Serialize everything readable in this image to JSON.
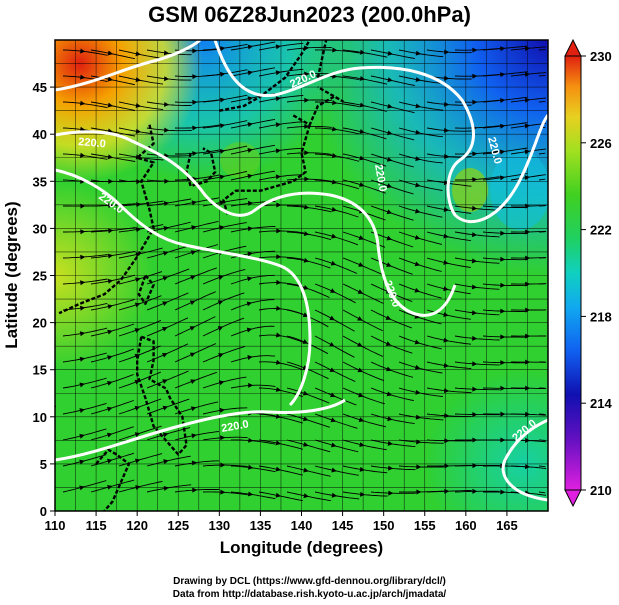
{
  "title": "GSM 06Z28Jun2023 (200.0hPa)",
  "x_axis": {
    "label": "Longitude (degrees)",
    "range": [
      110,
      170
    ],
    "ticks": [
      "110",
      "115",
      "120",
      "125",
      "130",
      "135",
      "140",
      "145",
      "150",
      "155",
      "160",
      "165"
    ]
  },
  "y_axis": {
    "label": "Latitude  (degrees)",
    "range": [
      0,
      50
    ],
    "ticks": [
      "0",
      "5",
      "10",
      "15",
      "20",
      "25",
      "30",
      "35",
      "40",
      "45"
    ]
  },
  "colorbar": {
    "range": [
      210,
      230
    ],
    "ticks": [
      "210",
      "214",
      "218",
      "222",
      "226",
      "230"
    ]
  },
  "contour_labels": [
    "220.0",
    "220.0",
    "220.0",
    "220.0",
    "220.0",
    "220.0",
    "220.0",
    "220.0"
  ],
  "credits": {
    "line1": "Drawing by DCL (https://www.gfd-dennou.org/library/dcl/)",
    "line2": "Data from http://database.rish.kyoto-u.ac.jp/arch/jmadata/"
  },
  "colors": {
    "warm": "#e02010",
    "orange": "#f5a000",
    "yellow": "#e8e020",
    "green": "#20d020",
    "cyan": "#10c8e0",
    "blue": "#1060f0",
    "navy": "#1010b0",
    "magenta": "#e020e0"
  }
}
